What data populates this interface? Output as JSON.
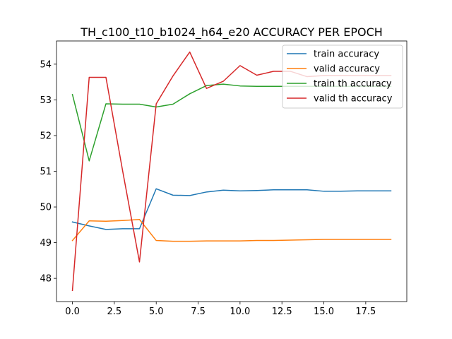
{
  "chart_data": {
    "type": "line",
    "title": "TH_c100_t10_b1024_h64_e20 ACCURACY PER EPOCH",
    "xlabel": "",
    "ylabel": "",
    "xlim": [
      -0.95,
      19.95
    ],
    "ylim": [
      47.35,
      54.65
    ],
    "x_ticks": [
      0,
      2.5,
      5,
      7.5,
      10,
      12.5,
      15,
      17.5
    ],
    "x_tick_labels": [
      "0.0",
      "2.5",
      "5.0",
      "7.5",
      "10.0",
      "12.5",
      "15.0",
      "17.5"
    ],
    "y_ticks": [
      48,
      49,
      50,
      51,
      52,
      53,
      54
    ],
    "y_tick_labels": [
      "48",
      "49",
      "50",
      "51",
      "52",
      "53",
      "54"
    ],
    "grid": false,
    "legend_position": "top-right",
    "x": [
      0,
      1,
      2,
      3,
      4,
      5,
      6,
      7,
      8,
      9,
      10,
      11,
      12,
      13,
      14,
      15,
      16,
      17,
      18,
      19
    ],
    "series": [
      {
        "name": "train accuracy",
        "color": "#1f77b4",
        "values": [
          49.58,
          49.47,
          49.37,
          49.39,
          49.39,
          50.51,
          50.33,
          50.32,
          50.42,
          50.47,
          50.45,
          50.46,
          50.48,
          50.48,
          50.48,
          50.44,
          50.44,
          50.45,
          50.45,
          50.45
        ]
      },
      {
        "name": "valid accuracy",
        "color": "#ff7f0e",
        "values": [
          49.06,
          49.61,
          49.6,
          49.62,
          49.65,
          49.06,
          49.04,
          49.04,
          49.05,
          49.05,
          49.05,
          49.06,
          49.06,
          49.07,
          49.08,
          49.09,
          49.09,
          49.09,
          49.09,
          49.09
        ]
      },
      {
        "name": "train th accuracy",
        "color": "#2ca02c",
        "values": [
          53.15,
          51.29,
          52.89,
          52.88,
          52.88,
          52.8,
          52.88,
          53.17,
          53.4,
          53.44,
          53.39,
          53.38,
          53.38,
          53.38,
          53.38,
          53.38,
          53.38,
          53.38,
          53.38,
          53.38
        ]
      },
      {
        "name": "valid th accuracy",
        "color": "#d62728",
        "values": [
          47.66,
          53.63,
          53.63,
          51.0,
          48.46,
          52.89,
          53.67,
          54.34,
          53.32,
          53.52,
          53.96,
          53.69,
          53.8,
          53.8,
          53.65,
          53.68,
          53.68,
          53.68,
          53.68,
          53.68
        ]
      }
    ]
  }
}
